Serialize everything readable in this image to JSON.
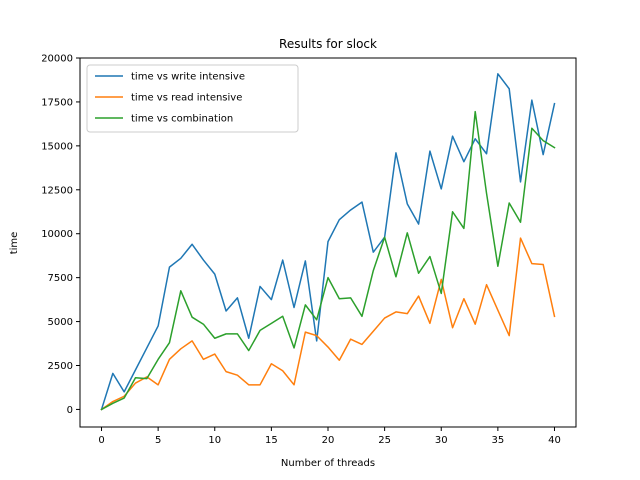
{
  "chart_data": {
    "type": "line",
    "title": "Results for slock",
    "xlabel": "Number of threads",
    "ylabel": "time",
    "xlim": [
      -1.9,
      41.9
    ],
    "ylim": [
      -1000,
      20000
    ],
    "xticks": [
      0,
      5,
      10,
      15,
      20,
      25,
      30,
      35,
      40
    ],
    "yticks": [
      0,
      2500,
      5000,
      7500,
      10000,
      12500,
      15000,
      17500,
      20000
    ],
    "grid": false,
    "legend_position": "top-left",
    "x": [
      0,
      1,
      2,
      3,
      4,
      5,
      6,
      7,
      8,
      9,
      10,
      11,
      12,
      13,
      14,
      15,
      16,
      17,
      18,
      19,
      20,
      21,
      22,
      23,
      24,
      25,
      26,
      27,
      28,
      29,
      30,
      31,
      32,
      33,
      34,
      35,
      36,
      37,
      38,
      39,
      40
    ],
    "series": [
      {
        "name": "time vs write intensive",
        "color": "#1f77b4",
        "values": [
          0,
          2050,
          1000,
          2250,
          3500,
          4750,
          8100,
          8600,
          9400,
          8500,
          7700,
          5600,
          6350,
          4050,
          7000,
          6250,
          8500,
          5800,
          8450,
          3900,
          9550,
          10800,
          11350,
          11800,
          8950,
          9800,
          14600,
          11700,
          10550,
          14700,
          12550,
          15550,
          14100,
          15400,
          14550,
          19100,
          18250,
          12950,
          17600,
          14500,
          17400
        ]
      },
      {
        "name": "time vs read intensive",
        "color": "#ff7f0e",
        "values": [
          0,
          450,
          750,
          1500,
          1850,
          1400,
          2850,
          3450,
          3900,
          2850,
          3150,
          2150,
          1950,
          1400,
          1400,
          2600,
          2200,
          1400,
          4400,
          4200,
          3550,
          2800,
          4000,
          3700,
          4450,
          5200,
          5550,
          5450,
          6450,
          4900,
          7400,
          4650,
          6300,
          4850,
          7100,
          5650,
          4200,
          9750,
          8300,
          8250,
          5300
        ]
      },
      {
        "name": "time vs combination",
        "color": "#2ca02c",
        "values": [
          0,
          350,
          650,
          1800,
          1750,
          2850,
          3800,
          6750,
          5250,
          4850,
          4050,
          4300,
          4300,
          3350,
          4500,
          4900,
          5300,
          3500,
          5950,
          5100,
          7500,
          6300,
          6350,
          5300,
          7900,
          9800,
          7550,
          10050,
          7750,
          8700,
          6600,
          11250,
          10300,
          16950,
          12300,
          8150,
          11750,
          10650,
          16000,
          15300,
          14900
        ]
      }
    ]
  }
}
